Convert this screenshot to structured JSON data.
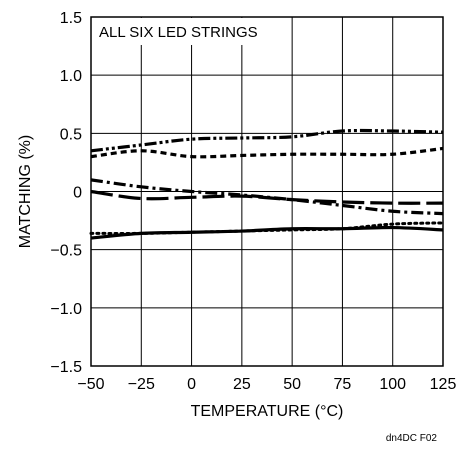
{
  "chart_data": {
    "type": "line",
    "annotation": "ALL SIX LED STRINGS",
    "xlabel": "TEMPERATURE (°C)",
    "ylabel": "MATCHING (%)",
    "xlim": [
      -50,
      125
    ],
    "ylim": [
      -1.5,
      1.5
    ],
    "xticks": [
      -50,
      -25,
      0,
      25,
      50,
      75,
      100,
      125
    ],
    "yticks": [
      1.5,
      1.0,
      0.5,
      0,
      -0.5,
      -1.0,
      -1.5
    ],
    "xtick_labels": [
      "−50",
      "−25",
      "0",
      "25",
      "50",
      "75",
      "100",
      "125"
    ],
    "ytick_labels": [
      "1.5",
      "1.0",
      "0.5",
      "0",
      "−0.5",
      "−1.0",
      "−1.5"
    ],
    "grid": true,
    "legend": "none",
    "series": [
      {
        "style": "dash-dot-dot",
        "x": [
          -50,
          -25,
          0,
          25,
          50,
          75,
          100,
          125
        ],
        "values": [
          0.35,
          0.4,
          0.45,
          0.46,
          0.47,
          0.52,
          0.52,
          0.51
        ]
      },
      {
        "style": "short-dash",
        "x": [
          -50,
          -25,
          0,
          25,
          50,
          75,
          100,
          125
        ],
        "values": [
          0.3,
          0.35,
          0.3,
          0.31,
          0.32,
          0.32,
          0.32,
          0.37
        ]
      },
      {
        "style": "dash-dot",
        "x": [
          -50,
          -25,
          0,
          25,
          50,
          75,
          100,
          125
        ],
        "values": [
          0.1,
          0.04,
          0.0,
          -0.03,
          -0.07,
          -0.12,
          -0.17,
          -0.19
        ]
      },
      {
        "style": "long-dash",
        "x": [
          -50,
          -25,
          0,
          25,
          50,
          75,
          100,
          125
        ],
        "values": [
          0.0,
          -0.06,
          -0.05,
          -0.04,
          -0.07,
          -0.09,
          -0.1,
          -0.1
        ]
      },
      {
        "style": "dotted",
        "x": [
          -50,
          -25,
          0,
          25,
          50,
          75,
          100,
          125
        ],
        "values": [
          -0.36,
          -0.36,
          -0.35,
          -0.34,
          -0.33,
          -0.32,
          -0.28,
          -0.27
        ]
      },
      {
        "style": "solid",
        "x": [
          -50,
          -25,
          0,
          25,
          50,
          75,
          100,
          125
        ],
        "values": [
          -0.4,
          -0.36,
          -0.35,
          -0.34,
          -0.32,
          -0.32,
          -0.31,
          -0.33
        ]
      }
    ],
    "footnote": "dn4DC F02"
  }
}
